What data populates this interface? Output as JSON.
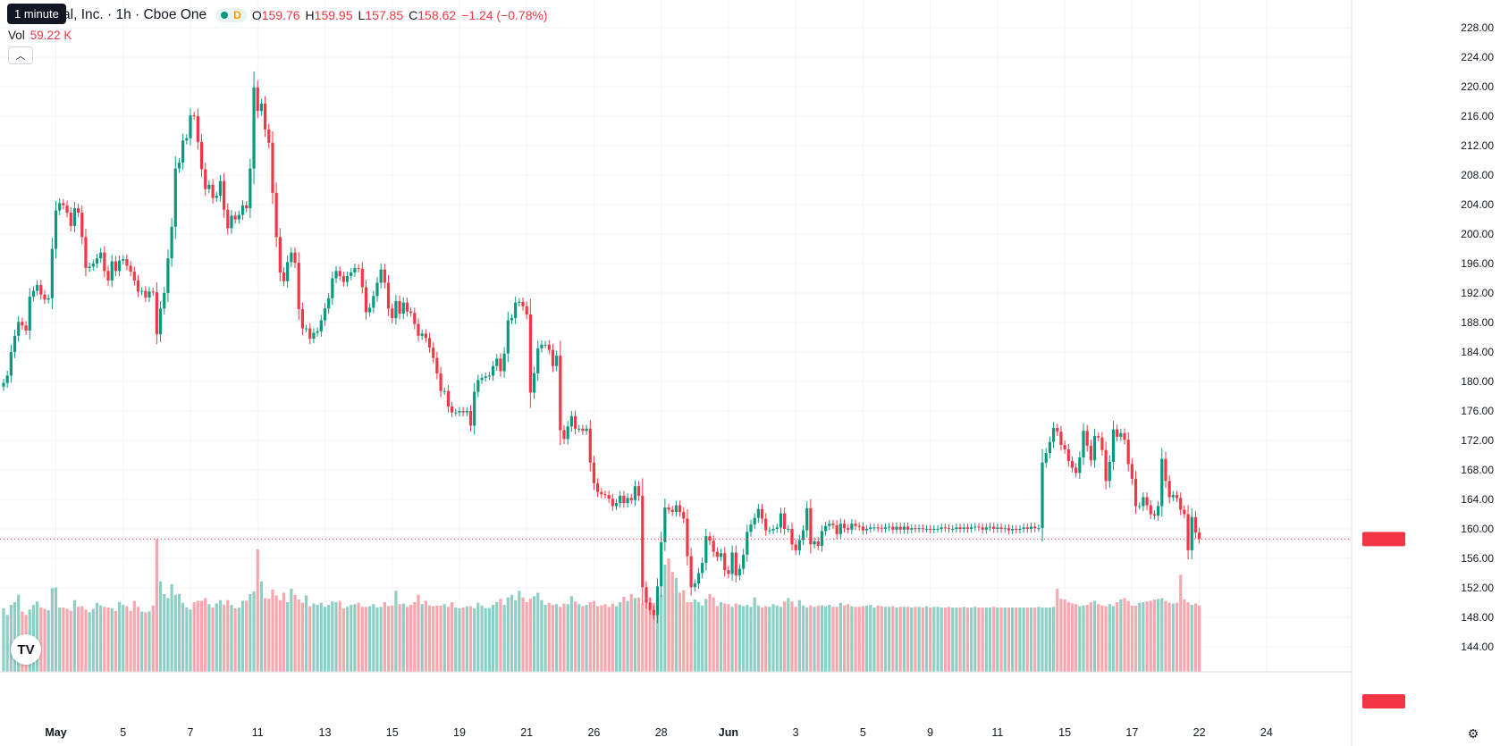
{
  "header": {
    "tooltip": "1 minute",
    "title": "ase Global, Inc. · 1h · Cboe One",
    "open_label": "O",
    "open": "159.76",
    "high_label": "H",
    "high": "159.95",
    "low_label": "L",
    "low": "157.85",
    "close_label": "C",
    "close": "158.62",
    "change": "−1.24 (−0.78%)",
    "d_badge": "D",
    "vol_label": "Vol",
    "vol_value": "59.22 K",
    "collapse_icon": "chevron-up-icon"
  },
  "logo_text": "TV",
  "colors": {
    "up": "#089981",
    "down": "#f23645",
    "up_vol": "#8dcfc5",
    "down_vol": "#f7a7ad",
    "grid": "#f0f3fa"
  },
  "chart_data": {
    "type": "candlestick",
    "price_axis": {
      "min": 140,
      "max": 230,
      "ticks": [
        "144.00",
        "148.00",
        "152.00",
        "156.00",
        "160.00",
        "164.00",
        "168.00",
        "172.00",
        "176.00",
        "180.00",
        "184.00",
        "188.00",
        "192.00",
        "196.00",
        "200.00",
        "204.00",
        "208.00",
        "212.00",
        "216.00",
        "220.00",
        "224.00",
        "228.00"
      ]
    },
    "x_ticks": [
      {
        "label": "May",
        "bar": 14,
        "bold": true
      },
      {
        "label": "5",
        "bar": 32
      },
      {
        "label": "7",
        "bar": 50
      },
      {
        "label": "11",
        "bar": 68
      },
      {
        "label": "13",
        "bar": 86
      },
      {
        "label": "15",
        "bar": 104
      },
      {
        "label": "19",
        "bar": 122
      },
      {
        "label": "21",
        "bar": 140
      },
      {
        "label": "26",
        "bar": 158
      },
      {
        "label": "28",
        "bar": 176
      },
      {
        "label": "Jun",
        "bar": 194,
        "bold": true
      },
      {
        "label": "3",
        "bar": 212
      },
      {
        "label": "5",
        "bar": 230
      },
      {
        "label": "9",
        "bar": 248
      },
      {
        "label": "11",
        "bar": 266
      },
      {
        "label": "15",
        "bar": 284
      },
      {
        "label": "17",
        "bar": 302
      },
      {
        "label": "22",
        "bar": 320
      },
      {
        "label": "24",
        "bar": 338
      }
    ],
    "last_price": "158.62",
    "last_volume": "59.22 K",
    "closes": [
      179.8,
      180.8,
      184,
      186.2,
      188.1,
      187.6,
      186.9,
      191.5,
      192.3,
      193.1,
      191.8,
      191.1,
      191.3,
      198,
      203.2,
      204.2,
      203.9,
      202.9,
      201.1,
      203.5,
      202.9,
      199.6,
      195.4,
      195.6,
      196,
      196.7,
      197.5,
      195,
      193.7,
      196.3,
      195,
      196.4,
      196.6,
      195.7,
      194.9,
      193.7,
      192.2,
      192.3,
      191.4,
      192.2,
      192.1,
      186.4,
      189.9,
      192,
      196.7,
      201,
      208.9,
      209.7,
      212.7,
      213,
      216.1,
      216,
      212.5,
      208.8,
      206.1,
      206.7,
      204.9,
      205.2,
      207.2,
      203.3,
      200.8,
      202.5,
      202,
      202.6,
      203.9,
      203.5,
      208.9,
      219.9,
      216.7,
      217.7,
      214.2,
      212.4,
      205.6,
      199.6,
      194.8,
      193.6,
      196.2,
      197.5,
      196.1,
      189.8,
      187.2,
      187.2,
      185.8,
      186.6,
      186.8,
      188.3,
      189.9,
      191.3,
      194,
      195,
      194.3,
      193.5,
      194.3,
      194.8,
      195.4,
      195.3,
      192.8,
      189.4,
      190,
      191.6,
      193.4,
      195.2,
      193.4,
      189.9,
      188.6,
      190.9,
      189.2,
      190.7,
      189.5,
      189.3,
      187.8,
      186.2,
      186.5,
      185.9,
      184.6,
      183.2,
      181.1,
      178.7,
      178.7,
      176.6,
      175.8,
      175.8,
      176,
      175.8,
      176,
      174,
      178.6,
      180.2,
      180.5,
      180.7,
      180.8,
      182.1,
      183.1,
      181.4,
      183.8,
      188.3,
      188.6,
      190.7,
      190.8,
      190.2,
      189.1,
      178.5,
      181.1,
      184.5,
      185,
      185,
      184.3,
      182.1,
      183.5,
      173.4,
      172.2,
      173.9,
      175.3,
      173.6,
      173.6,
      173.3,
      173.6,
      169,
      166.2,
      165,
      164.7,
      164.6,
      164.1,
      163.1,
      163.5,
      164.5,
      163.5,
      164.2,
      163.9,
      165.8,
      164.5,
      152.1,
      150,
      149,
      148.3,
      152.2,
      158.2,
      162.9,
      162.6,
      162.3,
      163.2,
      162.3,
      161.4,
      156.3,
      152.1,
      152.6,
      154,
      155.4,
      159,
      158.4,
      156.9,
      156.2,
      156.7,
      154.4,
      153.9,
      156.8,
      153.7,
      154.6,
      156.5,
      159.6,
      160.6,
      161.5,
      162.7,
      161.4,
      159.8,
      159.8,
      160,
      160.2,
      162.1,
      160,
      160,
      157.9,
      157.1,
      158.5,
      159.8,
      162.8,
      157.9,
      158.3,
      157.7,
      159.7,
      160.4,
      160.7,
      160.5,
      159.3,
      160.7,
      160.1,
      159.9,
      160.7,
      160.4,
      160.3,
      159.8,
      160,
      160.2,
      160.2,
      160.1,
      160,
      160.2,
      160.3,
      159.9,
      160.3,
      159.9,
      160.3,
      159.9,
      160.1,
      160,
      160.1,
      160,
      160,
      159.9,
      160,
      160,
      160.2,
      160.1,
      160,
      160,
      160.2,
      160,
      160.2,
      160,
      160.2,
      160.3,
      160.2,
      159.9,
      160.2,
      160.3,
      160,
      160.2,
      160,
      160.1,
      159.8,
      160,
      159.9,
      160,
      160.2,
      160,
      160.3,
      160.1,
      160.1,
      169,
      170.3,
      171.8,
      173.7,
      173.2,
      171.4,
      170.8,
      169.2,
      168.3,
      167.6,
      169.7,
      173.3,
      171.3,
      169.3,
      172.6,
      172.4,
      170.7,
      166.5,
      169.1,
      173.5,
      172.5,
      173,
      172.1,
      168.8,
      166.8,
      163.1,
      163.1,
      164.3,
      163.2,
      162,
      161.8,
      163.1,
      169.5,
      166.5,
      164.3,
      164.6,
      164.2,
      162.6,
      162,
      157.1,
      161.6,
      159.5,
      158.62
    ],
    "volumes_k": [
      95,
      85,
      100,
      104,
      115,
      90,
      85,
      93,
      100,
      105,
      96,
      94,
      92,
      125,
      126,
      96,
      96,
      94,
      91,
      107,
      97,
      98,
      93,
      89,
      94,
      103,
      99,
      97,
      96,
      95,
      91,
      104,
      100,
      98,
      91,
      106,
      97,
      90,
      89,
      90,
      99,
      198,
      135,
      116,
      110,
      131,
      115,
      116,
      103,
      96,
      93,
      104,
      106,
      106,
      110,
      101,
      96,
      102,
      107,
      100,
      107,
      100,
      95,
      96,
      106,
      106,
      116,
      120,
      183,
      135,
      110,
      109,
      123,
      114,
      107,
      118,
      104,
      124,
      115,
      108,
      103,
      114,
      98,
      102,
      100,
      103,
      97,
      100,
      105,
      104,
      106,
      95,
      97,
      100,
      101,
      103,
      97,
      97,
      98,
      101,
      96,
      97,
      104,
      98,
      99,
      121,
      101,
      102,
      97,
      100,
      104,
      115,
      101,
      106,
      99,
      98,
      99,
      99,
      101,
      97,
      104,
      96,
      95,
      96,
      98,
      98,
      95,
      103,
      99,
      95,
      95,
      100,
      104,
      109,
      100,
      111,
      115,
      107,
      121,
      111,
      104,
      109,
      113,
      118,
      107,
      100,
      103,
      100,
      101,
      97,
      102,
      101,
      113,
      105,
      101,
      98,
      100,
      104,
      106,
      98,
      99,
      101,
      97,
      102,
      98,
      104,
      112,
      106,
      116,
      110,
      111,
      102,
      119,
      111,
      103,
      110,
      115,
      160,
      169,
      149,
      140,
      118,
      122,
      104,
      104,
      108,
      104,
      99,
      109,
      116,
      111,
      98,
      104,
      102,
      101,
      97,
      102,
      100,
      98,
      100,
      97,
      111,
      99,
      96,
      98,
      97,
      101,
      99,
      97,
      105,
      110,
      105,
      97,
      107,
      99,
      96,
      99,
      97,
      99,
      99,
      98,
      100,
      97,
      97,
      103,
      99,
      101,
      98,
      97,
      97,
      98,
      99,
      100,
      96,
      99,
      98,
      97,
      97,
      98,
      96,
      97,
      97,
      97,
      96,
      97,
      97,
      96,
      98,
      96,
      97,
      97,
      96,
      96,
      97,
      96,
      96,
      96,
      97,
      96,
      96,
      97,
      96,
      96,
      96,
      96,
      97,
      96,
      96,
      96,
      96,
      96,
      96,
      96,
      96,
      96,
      96,
      96,
      97,
      96,
      96,
      96,
      97,
      124,
      109,
      108,
      104,
      102,
      101,
      98,
      99,
      100,
      104,
      106,
      101,
      99,
      98,
      101,
      98,
      104,
      108,
      110,
      106,
      99,
      99,
      103,
      104,
      105,
      106,
      108,
      109,
      110,
      106,
      103,
      102,
      103,
      145,
      108,
      104,
      100,
      102,
      99,
      100,
      112,
      108,
      98,
      59.22
    ]
  }
}
